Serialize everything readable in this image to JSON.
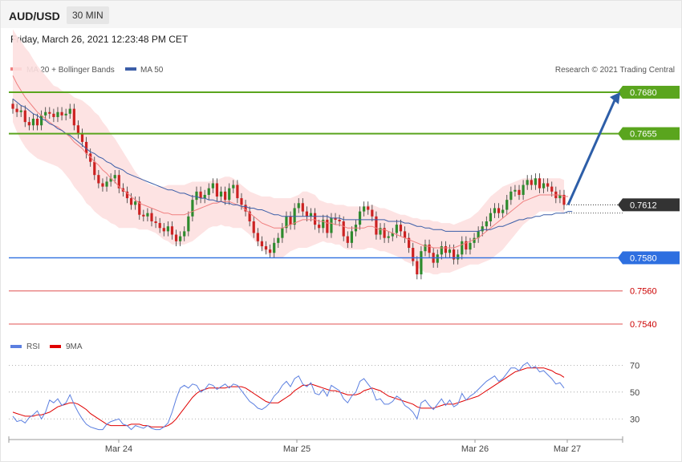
{
  "header": {
    "symbol": "AUD/USD",
    "timeframe": "30 MIN",
    "datetime": "Friday, March 26, 2021 12:23:48 PM CET"
  },
  "legend": {
    "ma20_label": "MA 20 + Bollinger Bands",
    "ma50_label": "MA 50",
    "credit": "Research © 2021 Trading Central",
    "rsi_label": "RSI",
    "rsi9_label": "9MA"
  },
  "colors": {
    "ma20": "#f08080",
    "ma50": "#3b5ea8",
    "bollinger_fill": "#fde0e0",
    "bull_candle": "#2e8b2e",
    "bear_candle": "#cc2222",
    "resistance": "#5aa51e",
    "support_blue": "#2e6fe0",
    "support_red": "#e05050",
    "current": "#333333",
    "rsi": "#5b7fe0",
    "rsi9": "#e00000",
    "forecast_arrow": "#2d5ea8"
  },
  "chart_data": {
    "type": "candlestick",
    "price_axis": {
      "min": 0.754,
      "max": 0.7695
    },
    "x_ticks": [
      "Mar 24",
      "Mar 25",
      "Mar 26",
      "Mar 27"
    ],
    "levels": [
      {
        "value": "0.7680",
        "kind": "resistance"
      },
      {
        "value": "0.7655",
        "kind": "resistance"
      },
      {
        "value": "0.7612",
        "kind": "current"
      },
      {
        "value": "0.7580",
        "kind": "support"
      },
      {
        "value": "0.7560",
        "kind": "support"
      },
      {
        "value": "0.7540",
        "kind": "support"
      }
    ],
    "close": [
      0.767,
      0.7668,
      0.7669,
      0.7662,
      0.766,
      0.7664,
      0.766,
      0.7666,
      0.7668,
      0.7667,
      0.7665,
      0.7668,
      0.7666,
      0.7667,
      0.767,
      0.766,
      0.7655,
      0.765,
      0.7643,
      0.7638,
      0.763,
      0.7625,
      0.7623,
      0.7626,
      0.7628,
      0.763,
      0.7622,
      0.762,
      0.7616,
      0.7612,
      0.7614,
      0.7606,
      0.7605,
      0.7607,
      0.7602,
      0.7601,
      0.7598,
      0.7596,
      0.7599,
      0.7594,
      0.759,
      0.7593,
      0.7596,
      0.7605,
      0.7615,
      0.762,
      0.7616,
      0.7618,
      0.7622,
      0.7625,
      0.7617,
      0.762,
      0.7615,
      0.7622,
      0.7624,
      0.7616,
      0.7612,
      0.7608,
      0.7602,
      0.7595,
      0.759,
      0.7587,
      0.7585,
      0.7583,
      0.7589,
      0.7592,
      0.7598,
      0.7605,
      0.76,
      0.761,
      0.7613,
      0.7608,
      0.7605,
      0.7607,
      0.76,
      0.7598,
      0.7603,
      0.7595,
      0.7604,
      0.7603,
      0.7602,
      0.7593,
      0.7589,
      0.7596,
      0.76,
      0.7608,
      0.7611,
      0.7609,
      0.7605,
      0.7594,
      0.7598,
      0.7592,
      0.7593,
      0.7595,
      0.76,
      0.7596,
      0.7592,
      0.7586,
      0.7578,
      0.757,
      0.7584,
      0.7588,
      0.7583,
      0.7577,
      0.7582,
      0.7587,
      0.7583,
      0.7585,
      0.7579,
      0.7582,
      0.759,
      0.7585,
      0.7589,
      0.7592,
      0.7596,
      0.7599,
      0.7602,
      0.7607,
      0.761,
      0.7607,
      0.7609,
      0.7615,
      0.762,
      0.7621,
      0.7618,
      0.7624,
      0.7627,
      0.7624,
      0.7628,
      0.7622,
      0.7625,
      0.7623,
      0.762,
      0.7616,
      0.7618,
      0.7612
    ],
    "ma20": [
      0.769,
      0.7685,
      0.7681,
      0.7677,
      0.7674,
      0.7671,
      0.7668,
      0.7666,
      0.7664,
      0.7662,
      0.766,
      0.7659,
      0.7657,
      0.7655,
      0.7653,
      0.765,
      0.7648,
      0.7646,
      0.7643,
      0.7641,
      0.7638,
      0.7636,
      0.7633,
      0.7631,
      0.7628,
      0.7626,
      0.7623,
      0.7621,
      0.7619,
      0.7617,
      0.7615,
      0.7613,
      0.7612,
      0.7611,
      0.761,
      0.7609,
      0.7608,
      0.7607,
      0.7607,
      0.7606,
      0.7606,
      0.7606,
      0.7606,
      0.7607,
      0.7608,
      0.7609,
      0.761,
      0.7611,
      0.7612,
      0.7613,
      0.7613,
      0.7614,
      0.7614,
      0.7614,
      0.7613,
      0.7612,
      0.7611,
      0.7609,
      0.7607,
      0.7605,
      0.7603,
      0.7601,
      0.76,
      0.7599,
      0.7598,
      0.7598,
      0.7598,
      0.7599,
      0.76,
      0.7601,
      0.7602,
      0.7603,
      0.7603,
      0.7603,
      0.7603,
      0.7602,
      0.7602,
      0.7601,
      0.7601,
      0.76,
      0.76,
      0.7599,
      0.7598,
      0.7598,
      0.7598,
      0.7598,
      0.7598,
      0.7599,
      0.7599,
      0.7598,
      0.7597,
      0.7597,
      0.7596,
      0.7595,
      0.7594,
      0.7593,
      0.7592,
      0.7591,
      0.759,
      0.7589,
      0.7588,
      0.7587,
      0.7587,
      0.7586,
      0.7586,
      0.7586,
      0.7586,
      0.7586,
      0.7586,
      0.7587,
      0.7588,
      0.7589,
      0.759,
      0.7591,
      0.7592,
      0.7594,
      0.7596,
      0.7598,
      0.76,
      0.7602,
      0.7604,
      0.7606,
      0.7608,
      0.761,
      0.7612,
      0.7614,
      0.7615,
      0.7616,
      0.7617,
      0.7618,
      0.7618,
      0.7618,
      0.7618,
      0.7618,
      0.7618,
      0.7617,
      0.7617
    ],
    "ma50": [
      0.7676,
      0.7674,
      0.7672,
      0.7671,
      0.7669,
      0.7667,
      0.7666,
      0.7664,
      0.7663,
      0.7661,
      0.766,
      0.7658,
      0.7657,
      0.7655,
      0.7654,
      0.7652,
      0.765,
      0.7648,
      0.7646,
      0.7644,
      0.7643,
      0.7641,
      0.764,
      0.7638,
      0.7637,
      0.7635,
      0.7634,
      0.7633,
      0.7631,
      0.763,
      0.7629,
      0.7628,
      0.7627,
      0.7626,
      0.7625,
      0.7624,
      0.7623,
      0.7622,
      0.7621,
      0.7621,
      0.762,
      0.7619,
      0.7619,
      0.7618,
      0.7617,
      0.7617,
      0.7616,
      0.7616,
      0.7615,
      0.7615,
      0.7614,
      0.7614,
      0.7613,
      0.7613,
      0.7612,
      0.7612,
      0.7611,
      0.7611,
      0.761,
      0.761,
      0.7609,
      0.7609,
      0.7608,
      0.7607,
      0.7606,
      0.7606,
      0.7605,
      0.7605,
      0.7605,
      0.7605,
      0.7605,
      0.7605,
      0.7605,
      0.7605,
      0.7605,
      0.7605,
      0.7605,
      0.7605,
      0.7604,
      0.7604,
      0.7604,
      0.7603,
      0.7603,
      0.7603,
      0.7603,
      0.7603,
      0.7603,
      0.7603,
      0.7603,
      0.7603,
      0.7603,
      0.7603,
      0.7602,
      0.7602,
      0.7602,
      0.7602,
      0.7601,
      0.7601,
      0.76,
      0.7599,
      0.7599,
      0.7598,
      0.7598,
      0.7597,
      0.7597,
      0.7597,
      0.7596,
      0.7596,
      0.7596,
      0.7596,
      0.7596,
      0.7596,
      0.7596,
      0.7596,
      0.7596,
      0.7597,
      0.7597,
      0.7597,
      0.7598,
      0.7599,
      0.7599,
      0.76,
      0.7601,
      0.7602,
      0.7603,
      0.7603,
      0.7604,
      0.7604,
      0.7605,
      0.7605,
      0.7606,
      0.7606,
      0.7606,
      0.7607,
      0.7607,
      0.7607,
      0.7608,
      0.7608
    ],
    "bb_width": [
      0.0028,
      0.0029,
      0.003,
      0.003,
      0.003,
      0.0029,
      0.0028,
      0.0027,
      0.0026,
      0.0025,
      0.0024,
      0.0024,
      0.0024,
      0.0025,
      0.0026,
      0.0027,
      0.0028,
      0.0029,
      0.003,
      0.003,
      0.003,
      0.003,
      0.0029,
      0.0028,
      0.0027,
      0.0026,
      0.0025,
      0.0023,
      0.0021,
      0.0019,
      0.0017,
      0.0016,
      0.0015,
      0.0014,
      0.0014,
      0.0014,
      0.0015,
      0.0016,
      0.0017,
      0.0018,
      0.0018,
      0.0018,
      0.0018,
      0.0018,
      0.0018,
      0.0017,
      0.0016,
      0.0015,
      0.0014,
      0.0014,
      0.0014,
      0.0014,
      0.0015,
      0.0015,
      0.0015,
      0.0014,
      0.0013,
      0.0013,
      0.0013,
      0.0014,
      0.0015,
      0.0016,
      0.0017,
      0.0018,
      0.0018,
      0.0018,
      0.0018,
      0.0017,
      0.0016,
      0.0016,
      0.0016,
      0.0017,
      0.0017,
      0.0016,
      0.0015,
      0.0013,
      0.0012,
      0.0012,
      0.0012,
      0.0012,
      0.0012,
      0.0013,
      0.0013,
      0.0013,
      0.0013,
      0.0013,
      0.0013,
      0.0013,
      0.0013,
      0.0013,
      0.0013,
      0.0013,
      0.0013,
      0.0013,
      0.0013,
      0.0013,
      0.0014,
      0.0014,
      0.0014,
      0.0015,
      0.0015,
      0.0016,
      0.0016,
      0.0016,
      0.0016,
      0.0015,
      0.0015,
      0.0015,
      0.0014,
      0.0014,
      0.0014,
      0.0014,
      0.0014,
      0.0015,
      0.0016,
      0.0017,
      0.0018,
      0.0019,
      0.0019,
      0.0019,
      0.0019,
      0.0018,
      0.0017,
      0.0016,
      0.0015,
      0.0014,
      0.0013,
      0.0012,
      0.0011,
      0.001,
      0.001,
      0.001,
      0.001,
      0.001,
      0.001,
      0.001,
      0.001,
      0.001
    ],
    "forecast": {
      "from": 0.7612,
      "to": 0.768
    },
    "rsi": {
      "ticks": [
        "70",
        "50",
        "30"
      ],
      "axis": {
        "min": 17,
        "max": 75
      },
      "rsi": [
        32,
        28,
        29,
        27,
        31,
        33,
        36,
        30,
        35,
        44,
        42,
        45,
        40,
        42,
        48,
        41,
        35,
        30,
        26,
        24,
        23,
        22,
        22,
        26,
        28,
        29,
        30,
        26,
        25,
        22,
        25,
        24,
        23,
        25,
        23,
        22,
        22,
        24,
        27,
        35,
        45,
        53,
        55,
        53,
        56,
        55,
        50,
        52,
        56,
        55,
        52,
        54,
        56,
        53,
        56,
        55,
        51,
        47,
        43,
        41,
        38,
        37,
        39,
        42,
        47,
        50,
        55,
        58,
        54,
        60,
        62,
        56,
        54,
        57,
        49,
        48,
        52,
        47,
        55,
        53,
        51,
        45,
        42,
        47,
        50,
        58,
        60,
        56,
        52,
        44,
        45,
        41,
        41,
        43,
        47,
        45,
        40,
        38,
        35,
        30,
        42,
        44,
        40,
        37,
        41,
        45,
        40,
        44,
        39,
        41,
        49,
        44,
        47,
        49,
        52,
        55,
        58,
        60,
        62,
        58,
        60,
        64,
        68,
        68,
        66,
        70,
        72,
        68,
        69,
        65,
        66,
        63,
        60,
        56,
        57,
        53
      ],
      "ma9": [
        35,
        34,
        33,
        32,
        32,
        32,
        33,
        33,
        34,
        35,
        37,
        39,
        40,
        41,
        42,
        42,
        41,
        39,
        37,
        34,
        32,
        30,
        28,
        26,
        25,
        25,
        25,
        25,
        25,
        26,
        26,
        26,
        25,
        25,
        24,
        24,
        24,
        24,
        25,
        27,
        30,
        34,
        38,
        42,
        46,
        49,
        51,
        52,
        53,
        53,
        53,
        53,
        53,
        54,
        54,
        54,
        54,
        53,
        51,
        49,
        47,
        45,
        43,
        42,
        42,
        42,
        44,
        46,
        48,
        51,
        53,
        55,
        55,
        56,
        55,
        54,
        53,
        52,
        51,
        51,
        50,
        49,
        48,
        48,
        48,
        49,
        51,
        52,
        53,
        52,
        51,
        49,
        47,
        46,
        45,
        44,
        43,
        42,
        41,
        39,
        38,
        38,
        38,
        38,
        39,
        40,
        41,
        41,
        41,
        42,
        43,
        44,
        45,
        46,
        47,
        49,
        51,
        53,
        55,
        57,
        59,
        61,
        63,
        65,
        66,
        67,
        68,
        68,
        68,
        68,
        68,
        67,
        66,
        64,
        63,
        61
      ]
    }
  }
}
